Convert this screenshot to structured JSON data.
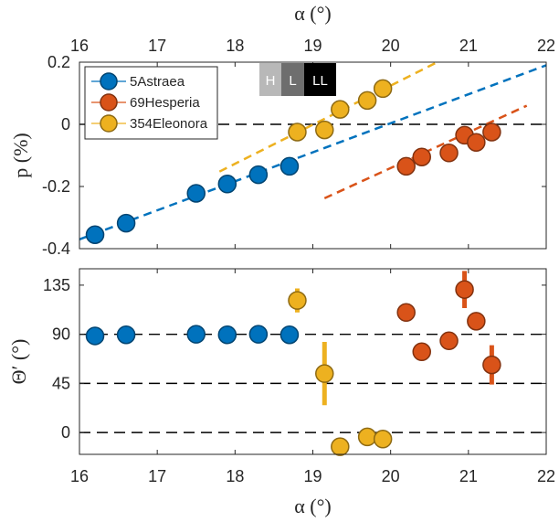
{
  "chart_data": [
    {
      "type": "scatter",
      "id": "top",
      "title": "",
      "xlabel": "α (°)",
      "ylabel": "p (%)",
      "xlim": [
        16,
        22
      ],
      "ylim": [
        -0.4,
        0.2
      ],
      "xticks": [
        "16",
        "17",
        "18",
        "19",
        "20",
        "21",
        "22"
      ],
      "yticks": [
        "0.2",
        "0",
        "-0.2",
        "-0.4"
      ],
      "ytick_values": [
        0.2,
        0,
        -0.2,
        -0.4
      ],
      "xtick_values": [
        16,
        17,
        18,
        19,
        20,
        21,
        22
      ],
      "reference_lines": [
        0
      ],
      "series": [
        {
          "name": "5Astraea",
          "color": "#0072BD",
          "points": [
            [
              16.2,
              -0.355
            ],
            [
              16.6,
              -0.318
            ],
            [
              17.5,
              -0.222
            ],
            [
              17.9,
              -0.192
            ],
            [
              18.3,
              -0.162
            ],
            [
              18.7,
              -0.135
            ]
          ],
          "fit": [
            [
              16.0,
              -0.37
            ],
            [
              22.0,
              0.19
            ]
          ]
        },
        {
          "name": "69Hesperia",
          "color": "#D95319",
          "points": [
            [
              20.2,
              -0.135
            ],
            [
              20.4,
              -0.105
            ],
            [
              20.75,
              -0.092
            ],
            [
              20.95,
              -0.035
            ],
            [
              21.1,
              -0.058
            ],
            [
              21.3,
              -0.025
            ]
          ],
          "errors": [
            0.005,
            0.025,
            0.005,
            0.008,
            0.008,
            0.008
          ],
          "fit": [
            [
              19.15,
              -0.238
            ],
            [
              21.75,
              0.06
            ]
          ]
        },
        {
          "name": "354Eleonora",
          "color": "#EDB120",
          "points": [
            [
              18.8,
              -0.025
            ],
            [
              19.15,
              -0.018
            ],
            [
              19.35,
              0.048
            ],
            [
              19.7,
              0.077
            ],
            [
              19.9,
              0.115
            ]
          ],
          "fit": [
            [
              17.8,
              -0.152
            ],
            [
              20.6,
              0.2
            ]
          ]
        }
      ],
      "legend": [
        "5Astraea",
        "69Hesperia",
        "354Eleonora"
      ],
      "legend_position": "top-left",
      "badges": [
        "H",
        "L",
        "LL"
      ],
      "badge_colors": [
        "#b8b8b8",
        "#6e6e6e",
        "#000000"
      ]
    },
    {
      "type": "scatter",
      "id": "bottom",
      "xlabel": "α (°)",
      "ylabel": "Θ′ (°)",
      "xlim": [
        16,
        22
      ],
      "ylim": [
        -20,
        150
      ],
      "xticks": [
        "16",
        "17",
        "18",
        "19",
        "20",
        "21",
        "22"
      ],
      "xtick_values": [
        16,
        17,
        18,
        19,
        20,
        21,
        22
      ],
      "yticks": [
        "135",
        "90",
        "45",
        "0"
      ],
      "ytick_values": [
        135,
        90,
        45,
        0
      ],
      "reference_lines": [
        90,
        45,
        0
      ],
      "series": [
        {
          "name": "5Astraea",
          "color": "#0072BD",
          "points": [
            [
              16.2,
              88.5
            ],
            [
              16.6,
              89.5
            ],
            [
              17.5,
              90
            ],
            [
              17.9,
              89.5
            ],
            [
              18.3,
              90
            ],
            [
              18.7,
              89.5
            ]
          ],
          "errors": [
            0,
            0,
            0,
            0,
            0,
            0
          ]
        },
        {
          "name": "69Hesperia",
          "color": "#D95319",
          "points": [
            [
              20.2,
              110
            ],
            [
              20.4,
              74
            ],
            [
              20.75,
              84
            ],
            [
              20.95,
              131
            ],
            [
              21.1,
              102
            ],
            [
              21.3,
              62
            ]
          ],
          "errors": [
            2,
            7,
            3,
            17,
            3,
            18
          ]
        },
        {
          "name": "354Eleonora",
          "color": "#EDB120",
          "points": [
            [
              18.8,
              121
            ],
            [
              19.15,
              54
            ],
            [
              19.35,
              -13
            ],
            [
              19.7,
              -4
            ],
            [
              19.9,
              -6
            ]
          ],
          "errors": [
            11,
            29,
            0,
            0,
            0
          ]
        }
      ]
    }
  ]
}
